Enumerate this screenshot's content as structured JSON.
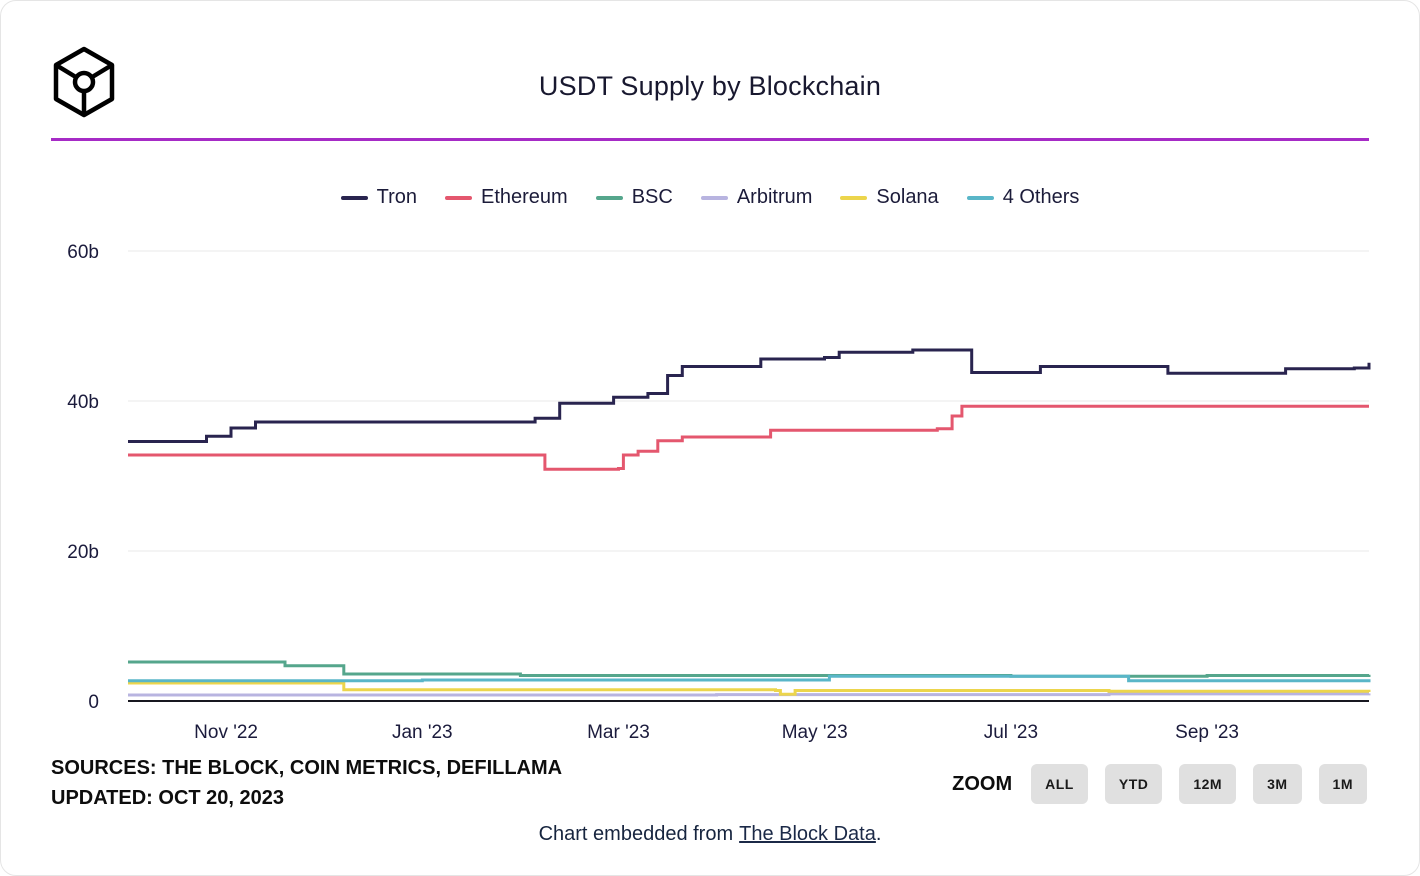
{
  "theme": {
    "accent_purple": "#a62bc6",
    "text_dark": "#17172f",
    "grid_color": "#e8e8e8",
    "axis_color": "#181820",
    "button_bg": "#e0e0e0"
  },
  "header": {
    "title": "USDT Supply by Blockchain",
    "logo": "the-block-cube-logo"
  },
  "chart_data": {
    "type": "line",
    "title": "USDT Supply by Blockchain",
    "unit": "billions of USDT",
    "x_unit": "months after Oct 1, 2022",
    "x_range": [
      0,
      12.65
    ],
    "y_range": [
      0,
      60
    ],
    "grid": true,
    "legend_position": "top-center",
    "y_ticks": [
      {
        "v": 0,
        "label": "0"
      },
      {
        "v": 20,
        "label": "20b"
      },
      {
        "v": 40,
        "label": "40b"
      },
      {
        "v": 60,
        "label": "60b"
      }
    ],
    "x_ticks": [
      {
        "t": 1,
        "label": "Nov '22"
      },
      {
        "t": 3,
        "label": "Jan '23"
      },
      {
        "t": 5,
        "label": "Mar '23"
      },
      {
        "t": 7,
        "label": "May '23"
      },
      {
        "t": 9,
        "label": "Jul '23"
      },
      {
        "t": 11,
        "label": "Sep '23"
      }
    ],
    "series": [
      {
        "name": "Tron",
        "color": "#29244f",
        "points": [
          [
            0,
            34.6
          ],
          [
            0.8,
            35.3
          ],
          [
            1.05,
            36.4
          ],
          [
            1.3,
            37.2
          ],
          [
            4.15,
            37.7
          ],
          [
            4.4,
            39.7
          ],
          [
            4.95,
            40.5
          ],
          [
            5.3,
            41.0
          ],
          [
            5.5,
            43.4
          ],
          [
            5.65,
            44.6
          ],
          [
            6.45,
            45.6
          ],
          [
            7.1,
            45.8
          ],
          [
            7.25,
            46.5
          ],
          [
            8.0,
            46.8
          ],
          [
            8.6,
            43.8
          ],
          [
            9.3,
            44.6
          ],
          [
            10.6,
            43.7
          ],
          [
            11.8,
            44.3
          ],
          [
            12.5,
            44.4
          ],
          [
            12.65,
            45.1
          ]
        ]
      },
      {
        "name": "Ethereum",
        "color": "#e4576e",
        "points": [
          [
            0,
            32.8
          ],
          [
            4.25,
            30.9
          ],
          [
            5.0,
            31.0
          ],
          [
            5.05,
            32.8
          ],
          [
            5.2,
            33.3
          ],
          [
            5.4,
            34.7
          ],
          [
            5.65,
            35.2
          ],
          [
            6.55,
            36.1
          ],
          [
            8.25,
            36.3
          ],
          [
            8.4,
            38.0
          ],
          [
            8.5,
            39.3
          ],
          [
            12.65,
            39.3
          ]
        ]
      },
      {
        "name": "BSC",
        "color": "#55a68c",
        "points": [
          [
            0,
            5.2
          ],
          [
            1.6,
            4.7
          ],
          [
            2.2,
            3.6
          ],
          [
            4.0,
            3.4
          ],
          [
            9.0,
            3.3
          ],
          [
            11.0,
            3.4
          ],
          [
            12.65,
            3.5
          ]
        ]
      },
      {
        "name": "Arbitrum",
        "color": "#b8b4e0",
        "points": [
          [
            0,
            0.8
          ],
          [
            6.0,
            0.85
          ],
          [
            10.0,
            0.95
          ],
          [
            12.65,
            1.0
          ]
        ]
      },
      {
        "name": "Solana",
        "color": "#ecd54c",
        "points": [
          [
            0,
            2.4
          ],
          [
            2.2,
            1.5
          ],
          [
            6.6,
            1.4
          ],
          [
            6.65,
            0.9
          ],
          [
            6.8,
            1.4
          ],
          [
            10.0,
            1.3
          ],
          [
            12.65,
            1.2
          ]
        ]
      },
      {
        "name": "4 Others",
        "color": "#59b6c8",
        "points": [
          [
            0,
            2.7
          ],
          [
            3.0,
            2.8
          ],
          [
            7.15,
            3.3
          ],
          [
            9.5,
            3.3
          ],
          [
            10.2,
            2.7
          ],
          [
            12.65,
            2.5
          ]
        ]
      }
    ]
  },
  "zoom": {
    "label": "ZOOM",
    "options": [
      "ALL",
      "YTD",
      "12M",
      "3M",
      "1M"
    ]
  },
  "footer": {
    "sources": "SOURCES: THE BLOCK, COIN METRICS, DEFILLAMA",
    "updated": "UPDATED: OCT 20, 2023",
    "embed_prefix": "Chart embedded from",
    "embed_link": "The Block Data",
    "embed_suffix": "."
  }
}
